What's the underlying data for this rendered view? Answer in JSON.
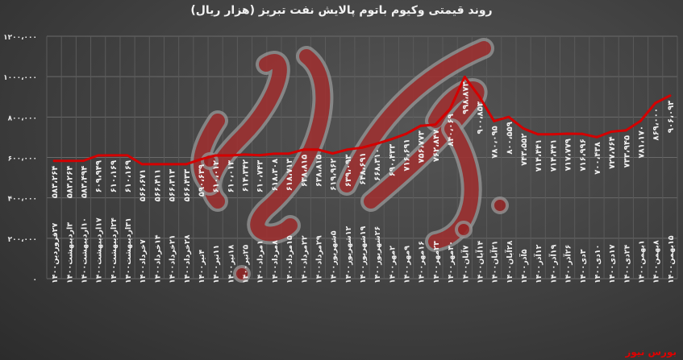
{
  "chart_data": {
    "type": "line",
    "title": "روند قیمتی وکیوم باتوم  پالایش نفت تبریز (هزار ریال)",
    "ylim": [
      0,
      1200000
    ],
    "yticks": [
      "۰",
      "۲۰۰،۰۰۰",
      "۴۰۰،۰۰۰",
      "۶۰۰،۰۰۰",
      "۸۰۰،۰۰۰",
      "۱۰۰۰،۰۰۰",
      "۱۲۰۰،۰۰۰"
    ],
    "ytick_values": [
      0,
      200000,
      400000,
      600000,
      800000,
      1000000,
      1200000
    ],
    "grid": true,
    "line_color": "#d40000",
    "categories": [
      "۲۷فروردین۱۴۰۰",
      "۳اردیبهشت۱۴۰۰",
      "۱۰اردیبهشت۱۴۰۰",
      "۱۷اردیبهشت۱۴۰۰",
      "۲۴اردیبهشت۱۴۰۰",
      "۳۱اردیبهشت۱۴۰۰",
      "۷خرداد۱۴۰۰",
      "۱۴خرداد۱۴۰۰",
      "۲۱خرداد۱۴۰۰",
      "۲۸خرداد۱۴۰۰",
      "۴تیر۱۴۰۰",
      "۱۱تیر۱۴۰۰",
      "۱۸تیر۱۴۰۰",
      "۲۵تیر۱۴۰۰",
      "۱مرداد۱۴۰۰",
      "۸مرداد۱۴۰۰",
      "۱۵مرداد۱۴۰۰",
      "۲۲مرداد۱۴۰۰",
      "۲۹مرداد۱۴۰۰",
      "۵شهریور۱۴۰۰",
      "۱۲شهریور۱۴۰۰",
      "۱۹شهریور۱۴۰۰",
      "۲۶شهریور۱۴۰۰",
      "۲مهر۱۴۰۰",
      "۹مهر۱۴۰۰",
      "۱۶مهر۱۴۰۰",
      "۲۳مهر۱۴۰۰",
      "۳۰مهر۱۴۰۰",
      "۷آبان۱۴۰۰",
      "۱۴آبان۱۴۰۰",
      "۲۱آبان۱۴۰۰",
      "۲۸آبان۱۴۰۰",
      "۵آذر۱۴۰۰",
      "۱۲آذر۱۴۰۰",
      "۱۹آذر۱۴۰۰",
      "۲۶آذر۱۴۰۰",
      "۳دی۱۴۰۰",
      "۱۰دی۱۴۰۰",
      "۱۷دی۱۴۰۰",
      "۲۴دی۱۴۰۰",
      "۱بهمن۱۴۰۰",
      "۸بهمن۱۴۰۰",
      "۱۵بهمن۱۴۰۰"
    ],
    "values": [
      583264,
      583264,
      583494,
      609949,
      610169,
      610169,
      566671,
      566411,
      566313,
      566433,
      590639,
      610012,
      610013,
      614342,
      610743,
      618308,
      618713,
      638815,
      638815,
      619962,
      639093,
      648691,
      668310,
      690433,
      716691,
      756773,
      762847,
      840069,
      998873,
      900853,
      780095,
      800559,
      743552,
      714441,
      714441,
      717779,
      716996,
      700438,
      727764,
      733945,
      781170,
      869000,
      906093
    ]
  },
  "watermark": "بورس نیوز",
  "brand": "بورس نیوز"
}
